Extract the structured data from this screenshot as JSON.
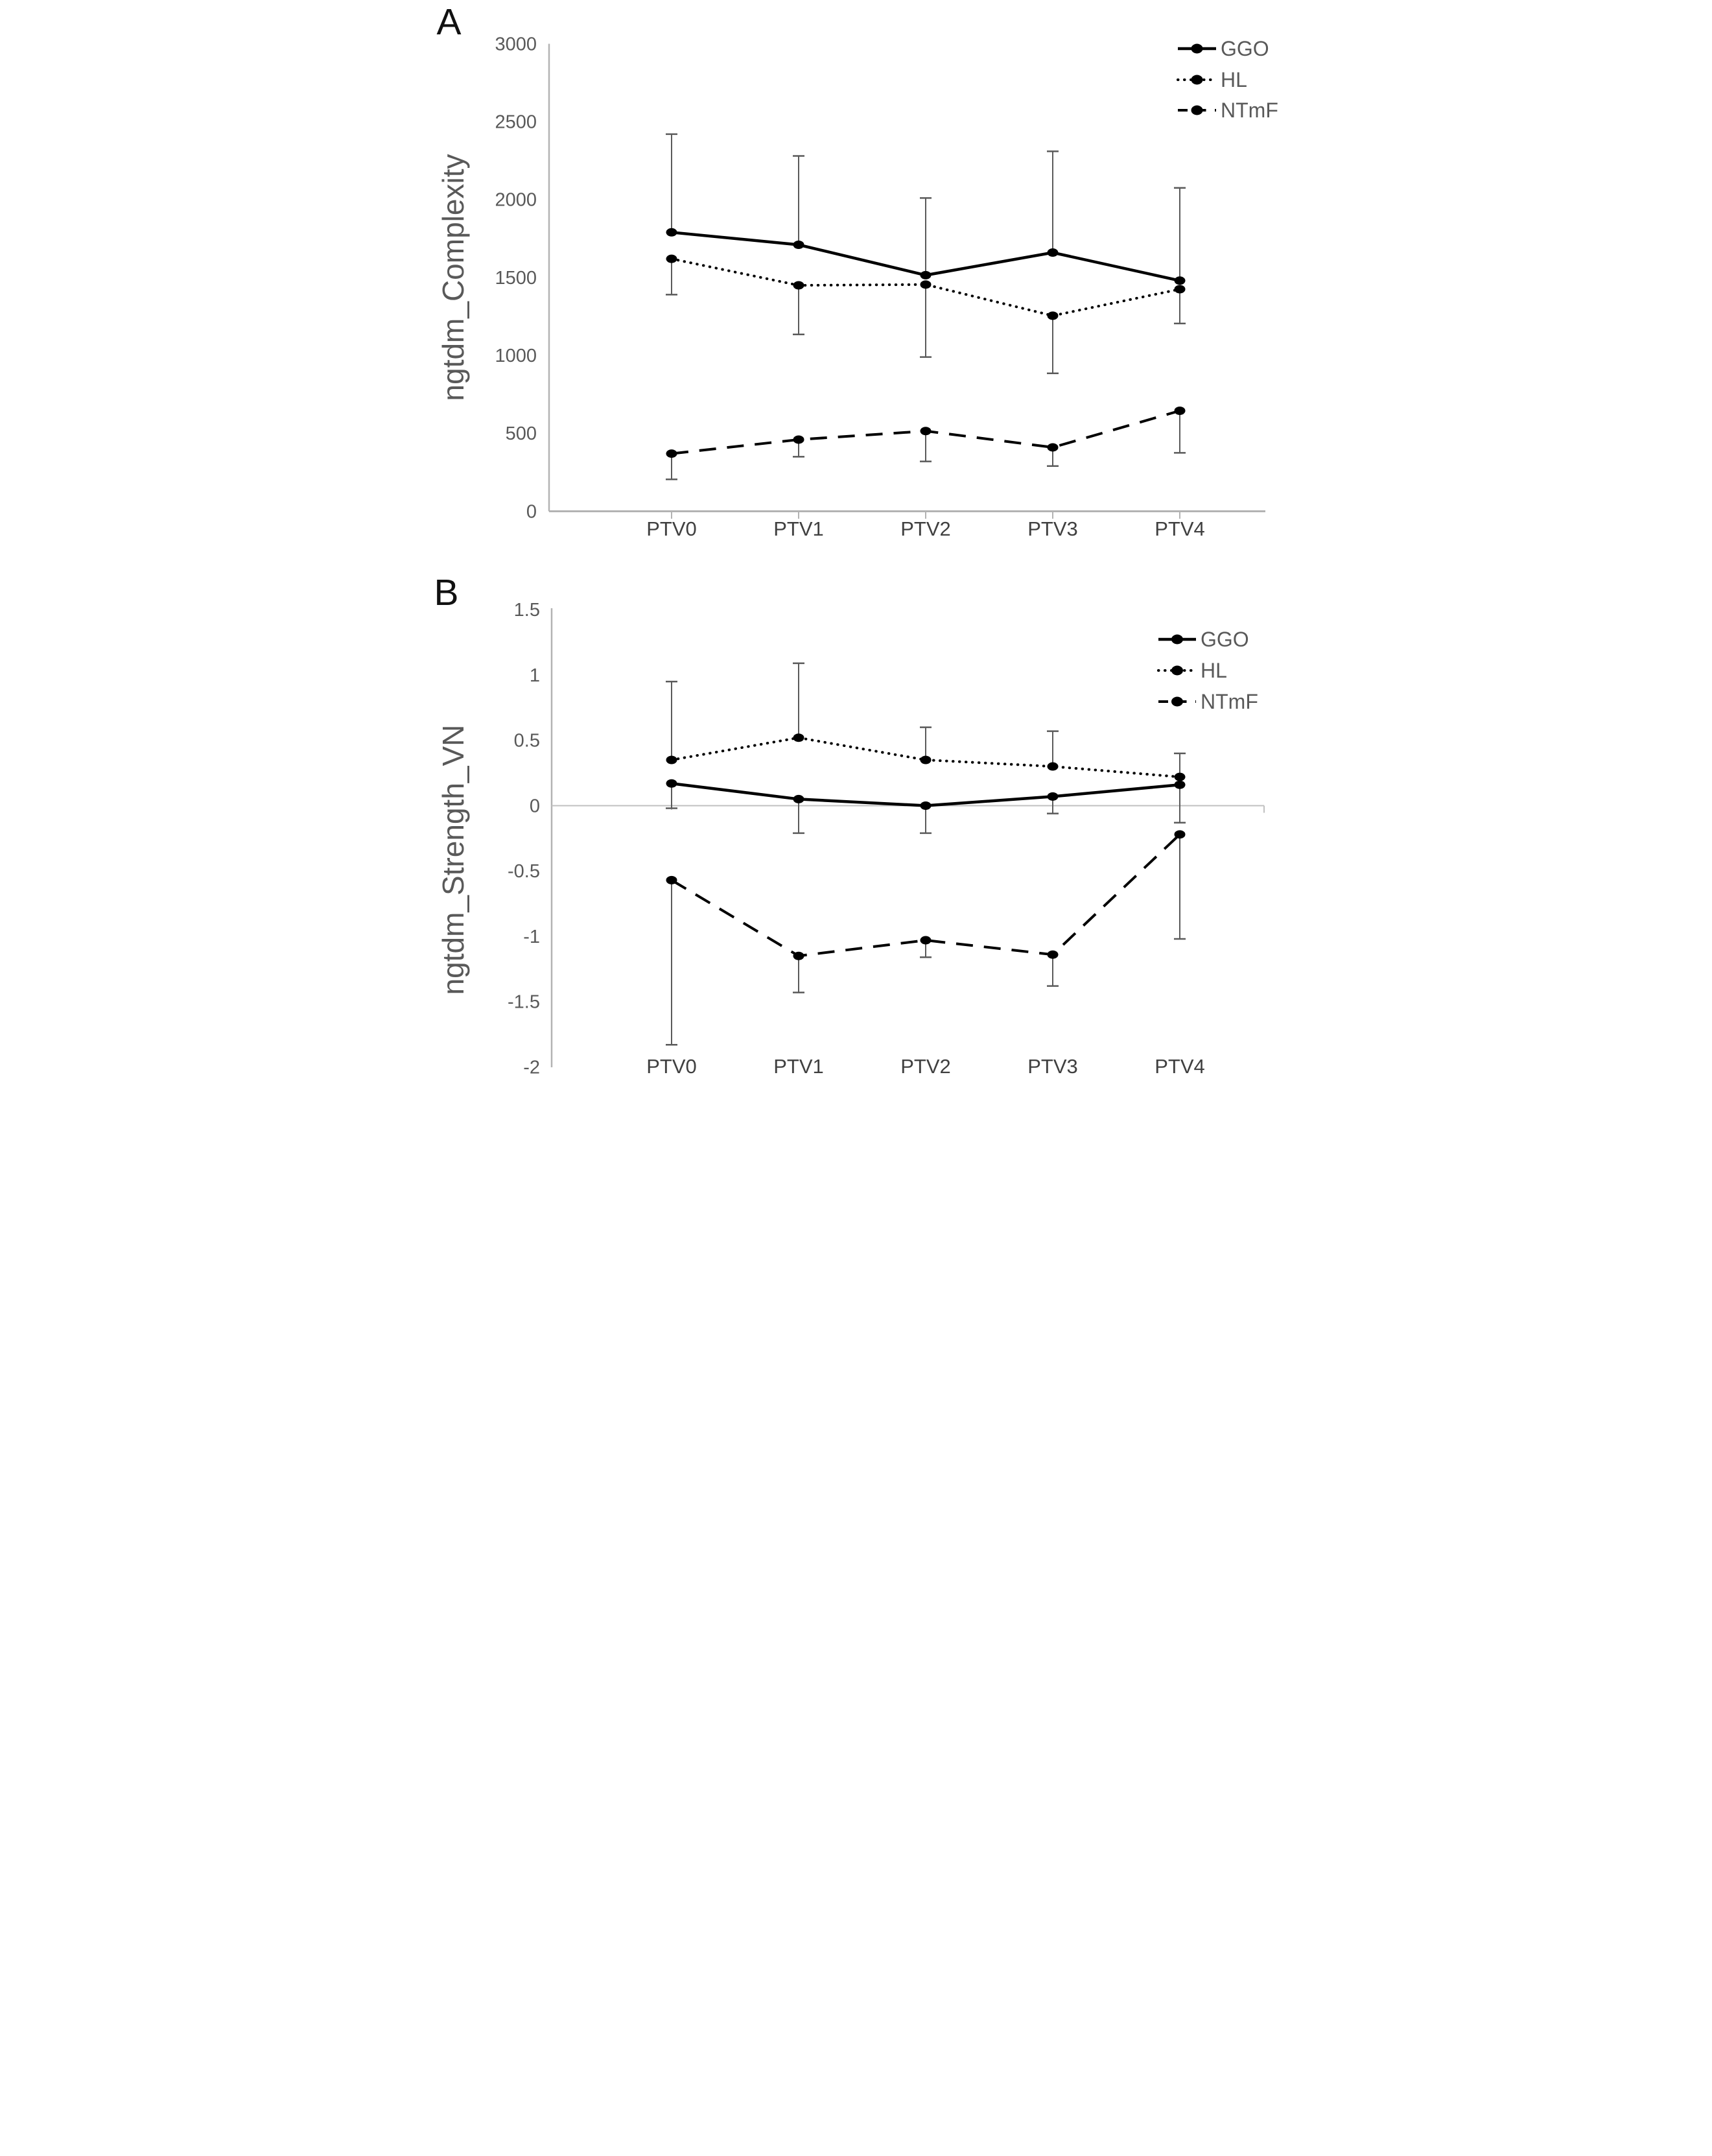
{
  "figure": {
    "background": "#ffffff"
  },
  "colors": {
    "data": "#000000",
    "axis_line": "#b3b3b3",
    "zero_line": "#c0c0c0",
    "tick_label": "#595959",
    "legend_label": "#595959",
    "error_bar": "#5a5a5a",
    "panel_letter": "#111111",
    "axis_title": "#595959"
  },
  "legend": {
    "items": [
      {
        "label": "GGO",
        "style": "solid",
        "marker": "dot"
      },
      {
        "label": "HL",
        "style": "dotted",
        "marker": "dot"
      },
      {
        "label": "NTmF",
        "style": "dashed",
        "marker": "dot"
      }
    ],
    "position": "top-right"
  },
  "chart_data": [
    {
      "type": "line",
      "panel_label": "A",
      "ylabel": "ngtdm_Complexity",
      "xlabel": "",
      "categories": [
        "PTV0",
        "PTV1",
        "PTV2",
        "PTV3",
        "PTV4"
      ],
      "ylim": [
        0,
        3000
      ],
      "y_tick_values": [
        3000,
        2500,
        2000,
        1500,
        1000,
        500,
        0
      ],
      "y_tick_labels": [
        "3000",
        "2500",
        "2000",
        "1500",
        "1000",
        "500",
        "0"
      ],
      "grid": false,
      "legend_position": "top-right",
      "series": [
        {
          "name": "GGO",
          "line": "solid",
          "values": [
            1790,
            1710,
            1515,
            1660,
            1480
          ],
          "error_caps": [
            2420,
            2280,
            2010,
            2310,
            2075
          ],
          "error_side": "up"
        },
        {
          "name": "HL",
          "line": "dotted",
          "values": [
            1620,
            1450,
            1455,
            1255,
            1425
          ],
          "error_caps": [
            1390,
            1135,
            990,
            885,
            1205
          ],
          "error_side": "down"
        },
        {
          "name": "NTmF",
          "line": "dashed",
          "values": [
            370,
            460,
            515,
            410,
            645
          ],
          "error_caps": [
            205,
            350,
            320,
            290,
            375
          ],
          "error_side": "down"
        }
      ]
    },
    {
      "type": "line",
      "panel_label": "B",
      "ylabel": "ngtdm_Strength_VN",
      "xlabel": "",
      "categories": [
        "PTV0",
        "PTV1",
        "PTV2",
        "PTV3",
        "PTV4"
      ],
      "ylim": [
        -2,
        1.5
      ],
      "y_tick_values": [
        1.5,
        1,
        0.5,
        0,
        -0.5,
        -1,
        -1.5,
        -2
      ],
      "y_tick_labels": [
        "1.5",
        "1",
        "0.5",
        "0",
        "-0.5",
        "-1",
        "-1.5",
        "-2"
      ],
      "grid": false,
      "zero_line": true,
      "legend_position": "top-right",
      "series": [
        {
          "name": "GGO",
          "line": "solid",
          "values": [
            0.17,
            0.05,
            0.0,
            0.07,
            0.16
          ],
          "error_caps": [
            -0.02,
            -0.21,
            -0.21,
            -0.06,
            -0.13
          ],
          "error_side": "down"
        },
        {
          "name": "HL",
          "line": "dotted",
          "values": [
            0.35,
            0.52,
            0.35,
            0.3,
            0.22
          ],
          "error_caps": [
            0.95,
            1.09,
            0.6,
            0.57,
            0.4
          ],
          "error_side": "up"
        },
        {
          "name": "NTmF",
          "line": "dashed",
          "values": [
            -0.57,
            -1.15,
            -1.03,
            -1.14,
            -0.22
          ],
          "error_caps": [
            -1.83,
            -1.43,
            -1.16,
            -1.38,
            -1.02
          ],
          "error_side": "down"
        }
      ]
    }
  ]
}
